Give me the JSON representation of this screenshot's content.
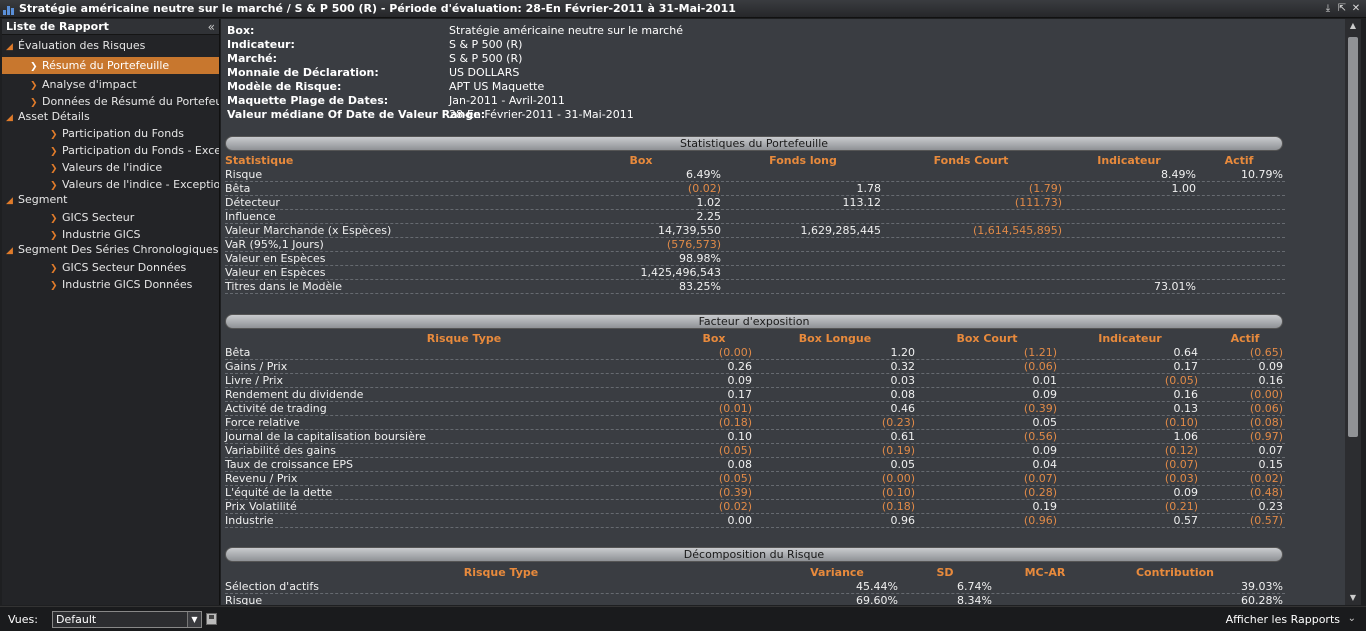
{
  "window": {
    "title": "Stratégie américaine neutre sur le marché / S & P 500 (R) - Période d'évaluation: 28-En Février-2011 à 31-Mai-2011"
  },
  "sidebar": {
    "header": "Liste de Rapport",
    "tree": [
      {
        "label": "Évaluation des Risques",
        "level": 0,
        "selected": false
      },
      {
        "label": "Résumé du Portefeuille",
        "level": 1,
        "selected": true
      },
      {
        "label": "Analyse d'impact",
        "level": 1,
        "selected": false
      },
      {
        "label": "Données de Résumé du Portefeuille",
        "level": 1,
        "selected": false
      },
      {
        "label": "Asset Détails",
        "level": 0,
        "selected": false
      },
      {
        "label": "Participation du Fonds",
        "level": 2,
        "selected": false
      },
      {
        "label": "Participation du Fonds - Exceptions",
        "level": 2,
        "selected": false
      },
      {
        "label": "Valeurs de l'indice",
        "level": 2,
        "selected": false
      },
      {
        "label": "Valeurs de l'indice - Exceptions",
        "level": 2,
        "selected": false
      },
      {
        "label": "Segment",
        "level": 0,
        "selected": false
      },
      {
        "label": "GICS Secteur",
        "level": 2,
        "selected": false
      },
      {
        "label": "Industrie GICS",
        "level": 2,
        "selected": false
      },
      {
        "label": "Segment Des Séries Chronologiques Données",
        "level": 0,
        "selected": false
      },
      {
        "label": "GICS Secteur Données",
        "level": 2,
        "selected": false
      },
      {
        "label": "Industrie GICS Données",
        "level": 2,
        "selected": false
      }
    ]
  },
  "bottom": {
    "vues_label": "Vues:",
    "vues_value": "Default",
    "afficher": "Afficher les Rapports"
  },
  "info": [
    {
      "k": "Box:",
      "v": "Stratégie américaine neutre sur le marché"
    },
    {
      "k": "Indicateur:",
      "v": "S & P 500 (R)"
    },
    {
      "k": "Marché:",
      "v": "S & P 500 (R)"
    },
    {
      "k": "Monnaie de Déclaration:",
      "v": "US DOLLARS"
    },
    {
      "k": "Modèle de Risque:",
      "v": "APT US Maquette"
    },
    {
      "k": "Maquette Plage de Dates:",
      "v": "Jan-2011 - Avril-2011"
    },
    {
      "k": "Valeur médiane Of Date de Valeur Range:",
      "v": "28-En Février-2011 - 31-Mai-2011"
    }
  ],
  "stats": {
    "title": "Statistiques du Portefeuille",
    "headers": [
      "Statistique",
      "Box",
      "Fonds long",
      "Fonds Court",
      "Indicateur",
      "Actif"
    ],
    "rows": [
      [
        "Risque",
        "6.49%",
        "",
        "",
        "8.49%",
        "10.79%"
      ],
      [
        "Bêta",
        "(0.02)",
        "1.78",
        "(1.79)",
        "1.00",
        ""
      ],
      [
        "Détecteur",
        "1.02",
        "113.12",
        "(111.73)",
        "",
        ""
      ],
      [
        "Influence",
        "2.25",
        "",
        "",
        "",
        ""
      ],
      [
        "Valeur Marchande (x Espèces)",
        "14,739,550",
        "1,629,285,445",
        "(1,614,545,895)",
        "",
        ""
      ],
      [
        "VaR (95%,1 Jours)",
        "(576,573)",
        "",
        "",
        "",
        ""
      ],
      [
        "Valeur en Espèces",
        "98.98%",
        "",
        "",
        "",
        ""
      ],
      [
        "Valeur en Espèces",
        "1,425,496,543",
        "",
        "",
        "",
        ""
      ],
      [
        "Titres dans le Modèle",
        "83.25%",
        "",
        "",
        "73.01%",
        ""
      ]
    ]
  },
  "exposure": {
    "title": "Facteur d'exposition",
    "headers": [
      "Risque Type",
      "Box",
      "Box Longue",
      "Box Court",
      "Indicateur",
      "Actif"
    ],
    "rows": [
      [
        "Bêta",
        "(0.00)",
        "1.20",
        "(1.21)",
        "0.64",
        "(0.65)"
      ],
      [
        "Gains / Prix",
        "0.26",
        "0.32",
        "(0.06)",
        "0.17",
        "0.09"
      ],
      [
        "Livre / Prix",
        "0.09",
        "0.03",
        "0.01",
        "(0.05)",
        "0.16"
      ],
      [
        "Rendement du dividende",
        "0.17",
        "0.08",
        "0.09",
        "0.16",
        "(0.00)"
      ],
      [
        "Activité de trading",
        "(0.01)",
        "0.46",
        "(0.39)",
        "0.13",
        "(0.06)"
      ],
      [
        "Force relative",
        "(0.18)",
        "(0.23)",
        "0.05",
        "(0.10)",
        "(0.08)"
      ],
      [
        "Journal de la capitalisation boursière",
        "0.10",
        "0.61",
        "(0.56)",
        "1.06",
        "(0.97)"
      ],
      [
        "Variabilité des gains",
        "(0.05)",
        "(0.19)",
        "0.09",
        "(0.12)",
        "0.07"
      ],
      [
        "Taux de croissance EPS",
        "0.08",
        "0.05",
        "0.04",
        "(0.07)",
        "0.15"
      ],
      [
        "Revenu / Prix",
        "(0.05)",
        "(0.00)",
        "(0.07)",
        "(0.03)",
        "(0.02)"
      ],
      [
        "L'équité de la dette",
        "(0.39)",
        "(0.10)",
        "(0.28)",
        "0.09",
        "(0.48)"
      ],
      [
        "Prix Volatilité",
        "(0.02)",
        "(0.18)",
        "0.19",
        "(0.21)",
        "0.23"
      ],
      [
        "Industrie",
        "0.00",
        "0.96",
        "(0.96)",
        "0.57",
        "(0.57)"
      ]
    ]
  },
  "decomp": {
    "title": "Décomposition du Risque",
    "headers": [
      "Risque Type",
      "Variance",
      "SD",
      "MC-AR",
      "Contribution"
    ],
    "rows": [
      [
        "Sélection d'actifs",
        "45.44%",
        "6.74%",
        "",
        "39.03%"
      ],
      [
        "Risque",
        "69.60%",
        "8.34%",
        "",
        "60.28%"
      ]
    ]
  }
}
